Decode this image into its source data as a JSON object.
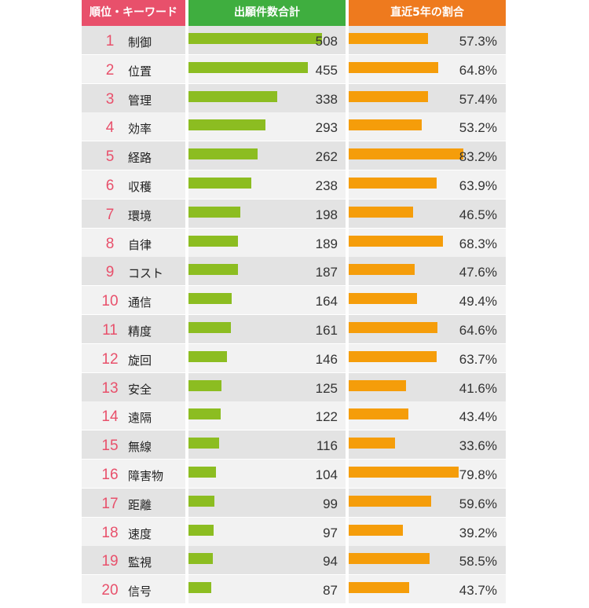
{
  "headers": {
    "keyword": "順位・キーワード",
    "count": "出願件数合計",
    "ratio": "直近5年の割合"
  },
  "colors": {
    "keyword_header": "#e8506b",
    "count_header": "#3fae3f",
    "ratio_header": "#ee7a1e",
    "count_bar": "#8cbd21",
    "ratio_bar": "#f59d0a",
    "rank_text": "#e8506b"
  },
  "chart_data": {
    "type": "bar",
    "categories": [
      "制御",
      "位置",
      "管理",
      "効率",
      "経路",
      "収穫",
      "環境",
      "自律",
      "コスト",
      "通信",
      "精度",
      "旋回",
      "安全",
      "遠隔",
      "無線",
      "障害物",
      "距離",
      "速度",
      "監視",
      "信号"
    ],
    "ranks": [
      "1",
      "2",
      "3",
      "4",
      "5",
      "6",
      "7",
      "8",
      "9",
      "10",
      "11",
      "12",
      "13",
      "14",
      "15",
      "16",
      "17",
      "18",
      "19",
      "20"
    ],
    "series": [
      {
        "name": "出願件数合計",
        "values": [
          508,
          455,
          338,
          293,
          262,
          238,
          198,
          189,
          187,
          164,
          161,
          146,
          125,
          122,
          116,
          104,
          99,
          97,
          94,
          87
        ]
      },
      {
        "name": "直近5年の割合",
        "values": [
          57.3,
          64.8,
          57.4,
          53.2,
          83.2,
          63.9,
          46.5,
          68.3,
          47.6,
          49.4,
          64.6,
          63.7,
          41.6,
          43.4,
          33.6,
          79.8,
          59.6,
          39.2,
          58.5,
          43.7
        ],
        "labels": [
          "57.3%",
          "64.8%",
          "57.4%",
          "53.2%",
          "83.2%",
          "63.9%",
          "46.5%",
          "68.3%",
          "47.6%",
          "49.4%",
          "64.6%",
          "63.7%",
          "41.6%",
          "43.4%",
          "33.6%",
          "79.8%",
          "59.6%",
          "39.2%",
          "58.5%",
          "43.7%"
        ]
      }
    ]
  }
}
